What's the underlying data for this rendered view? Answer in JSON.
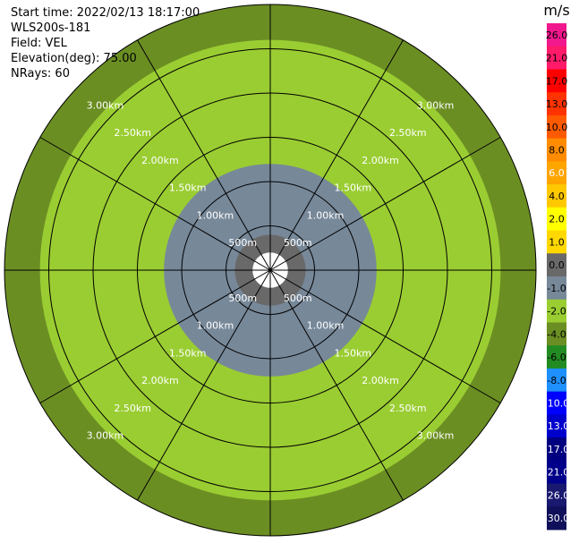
{
  "header": {
    "start_time": "Start time: 2022/02/13 18:17:00",
    "instrument": "WLS200s-181",
    "field": "Field: VEL",
    "elevation": "Elevation(deg): 75.00",
    "nrays": "NRays: 60"
  },
  "chart_data": {
    "type": "ppi",
    "field": "VEL",
    "units": "m/s",
    "range_max_m": 3000,
    "range_rings": [
      {
        "range_m": 500,
        "label": "500m"
      },
      {
        "range_m": 1000,
        "label": "1.00km"
      },
      {
        "range_m": 1500,
        "label": "1.50km"
      },
      {
        "range_m": 2000,
        "label": "2.00km"
      },
      {
        "range_m": 2500,
        "label": "2.50km"
      },
      {
        "range_m": 3000,
        "label": "3.00km"
      }
    ],
    "azimuth_spokes_deg": [
      0,
      30,
      60,
      90,
      120,
      150,
      180,
      210,
      240,
      270,
      300,
      330
    ],
    "colorbar": {
      "title": "m/s",
      "ticks": [
        "26.0",
        "21.0",
        "17.0",
        "13.0",
        "10.0",
        "8.0",
        "6.0",
        "4.0",
        "2.0",
        "1.0",
        "0.0",
        "-1.0",
        "-2.0",
        "-4.0",
        "-6.0",
        "-8.0",
        "-10.0",
        "-13.0",
        "-17.0",
        "-21.0",
        "-26.0",
        "-30.0"
      ],
      "colors": [
        "#f0188c",
        "#ff1a6a",
        "#ff0000",
        "#ff3300",
        "#ff5a00",
        "#ff8c00",
        "#ffa500",
        "#ffc800",
        "#ffff00",
        "#ffd800",
        "#696969",
        "#778899",
        "#9acd32",
        "#6b8e23",
        "#228b22",
        "#1e90ff",
        "#0000ff",
        "#0000cd",
        "#000080",
        "#00008b",
        "#191970",
        "#10105a"
      ]
    },
    "range_gates": [
      {
        "range_m": 100,
        "value": null
      },
      {
        "range_m": 300,
        "value": -0.5
      },
      {
        "range_m": 500,
        "value": -0.6
      },
      {
        "range_m": 700,
        "value": -0.8
      },
      {
        "range_m": 900,
        "value": -1.2
      },
      {
        "range_m": 1100,
        "value": -1.5
      },
      {
        "range_m": 1300,
        "value": -1.8
      },
      {
        "range_m": 1500,
        "value": -2.0
      },
      {
        "range_m": 1700,
        "value": -2.2
      },
      {
        "range_m": 1900,
        "value": -2.4
      },
      {
        "range_m": 2100,
        "value": -2.6
      },
      {
        "range_m": 2300,
        "value": -2.8
      },
      {
        "range_m": 2500,
        "value": -3.0
      },
      {
        "range_m": 2700,
        "value": -3.5
      },
      {
        "range_m": 2900,
        "value": -4.0
      }
    ],
    "azimuth_bins_deg": 60
  }
}
